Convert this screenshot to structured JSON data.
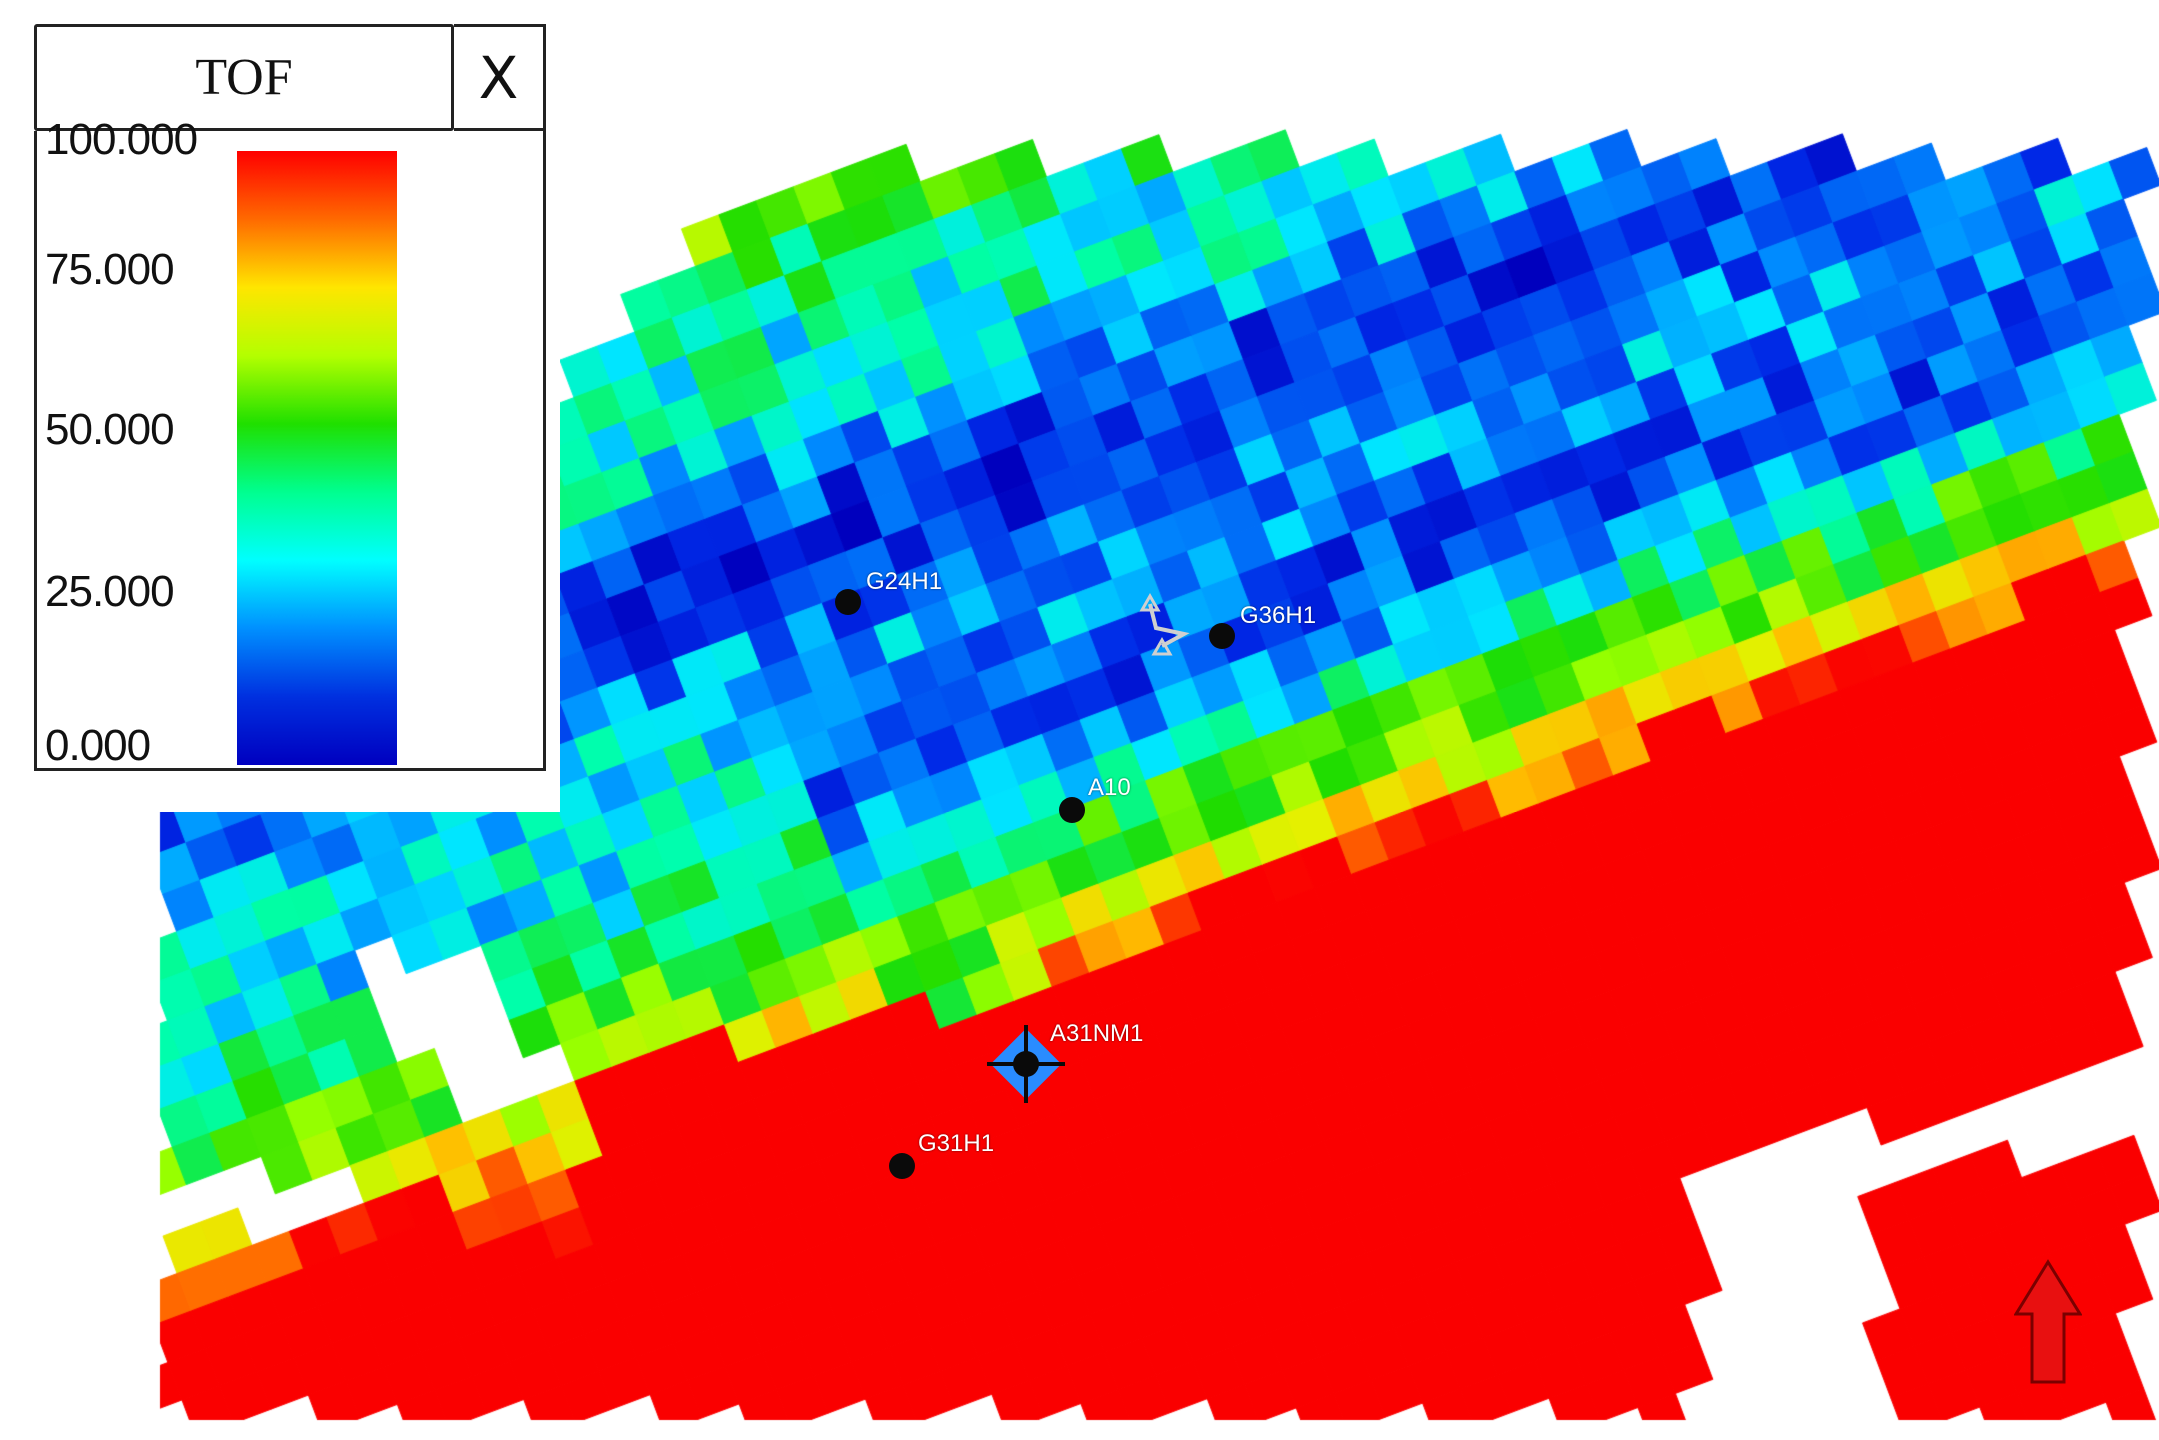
{
  "legend": {
    "title": "TOF",
    "close_label": "X",
    "ticks": [
      {
        "label": "100.000",
        "value": 100
      },
      {
        "label": "75.000",
        "value": 75
      },
      {
        "label": "50.000",
        "value": 50
      },
      {
        "label": "25.000",
        "value": 25
      },
      {
        "label": "0.000",
        "value": 0
      }
    ],
    "colors": [
      "#ff0000",
      "#ff6a00",
      "#ffe600",
      "#b4ff00",
      "#20e000",
      "#00ff90",
      "#00ffff",
      "#0090ff",
      "#0030e0",
      "#0000c0"
    ]
  },
  "wells": [
    {
      "name": "G24H1"
    },
    {
      "name": "G36H1"
    },
    {
      "name": "A10"
    },
    {
      "name": "A31NM1"
    },
    {
      "name": "G31H1"
    }
  ],
  "north_arrow_color": "#e81010"
}
